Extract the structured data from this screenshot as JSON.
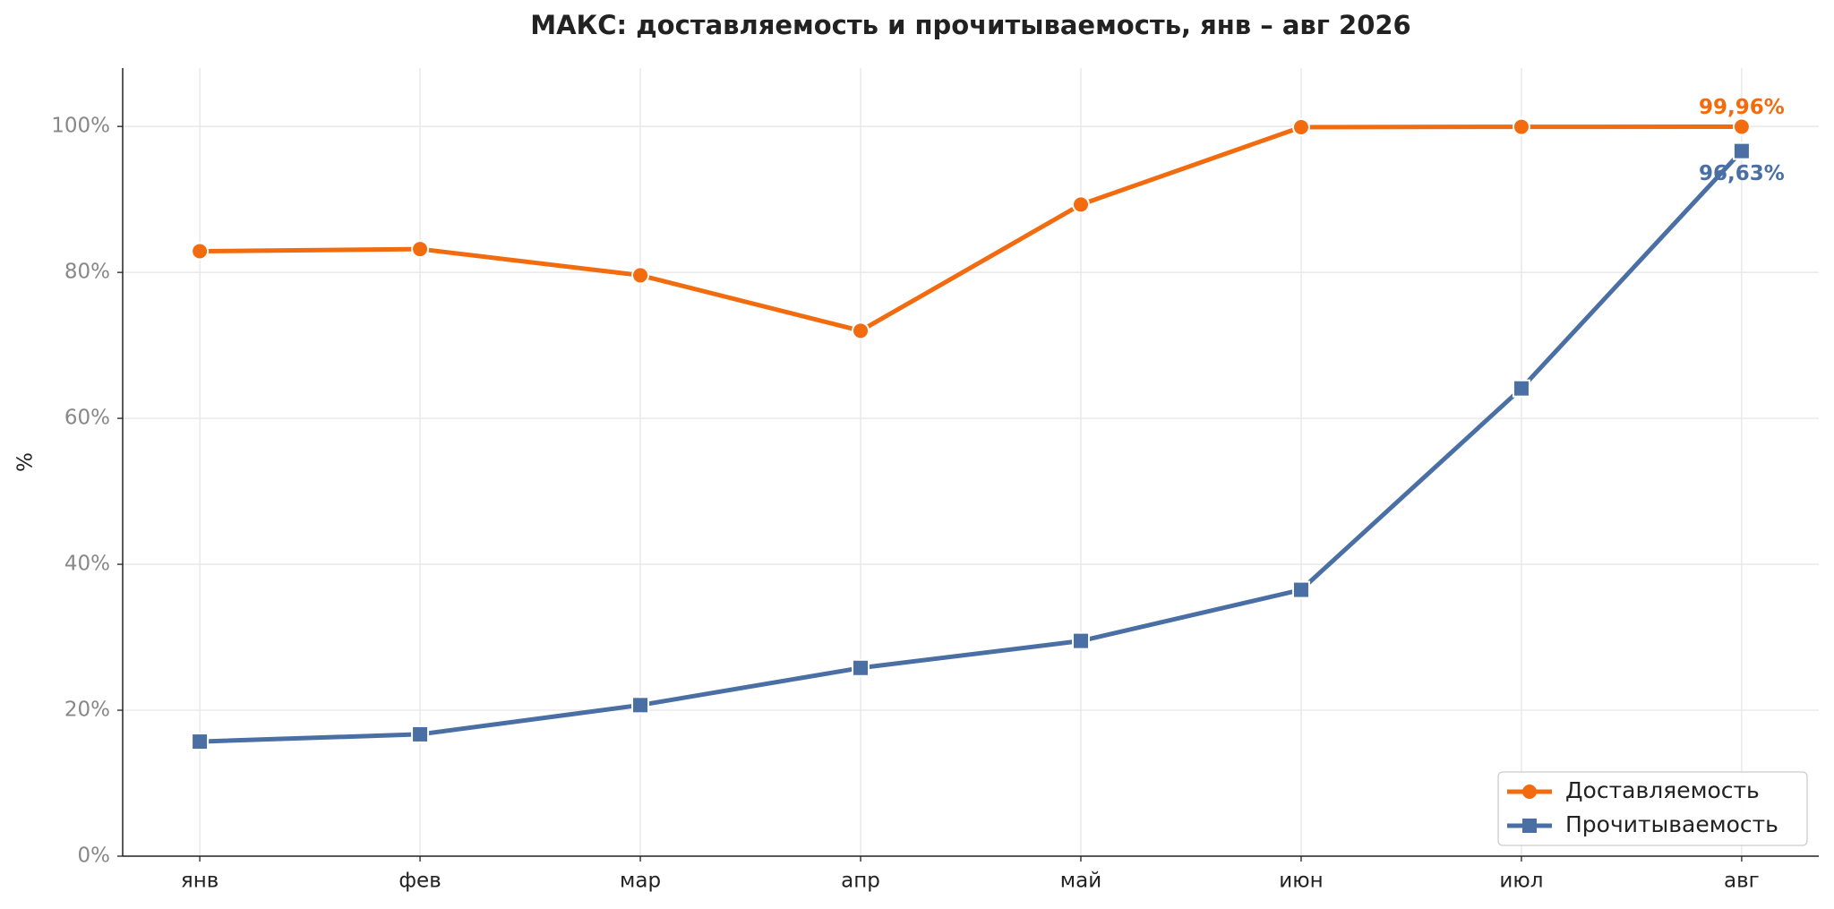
{
  "chart_data": {
    "type": "line",
    "title": "МАКС: доставляемость и прочитываемость, янв – авг 2026",
    "y_label": "%",
    "categories": [
      "янв",
      "фев",
      "мар",
      "апр",
      "май",
      "июн",
      "июл",
      "авг"
    ],
    "series": [
      {
        "name": "Доставляемость",
        "color": "#f26b0f",
        "marker": "circle",
        "values": [
          82.9,
          83.2,
          79.6,
          72.0,
          89.3,
          99.9,
          99.95,
          99.96
        ],
        "value_labels": [
          null,
          null,
          null,
          null,
          null,
          null,
          null,
          "99,96%"
        ]
      },
      {
        "name": "Прочитываемость",
        "color": "#4a6fa5",
        "marker": "square",
        "values": [
          15.7,
          16.7,
          20.7,
          25.8,
          29.5,
          36.5,
          64.1,
          96.63
        ],
        "value_labels": [
          null,
          null,
          null,
          null,
          null,
          null,
          null,
          "96,63%"
        ]
      }
    ],
    "ylim": [
      0,
      108
    ],
    "yticks": [
      {
        "value": 0,
        "label": "0%"
      },
      {
        "value": 20,
        "label": "20%"
      },
      {
        "value": 40,
        "label": "40%"
      },
      {
        "value": 60,
        "label": "60%"
      },
      {
        "value": 80,
        "label": "80%"
      },
      {
        "value": 100,
        "label": "100%"
      }
    ],
    "grid": true,
    "legend": "lower right"
  }
}
